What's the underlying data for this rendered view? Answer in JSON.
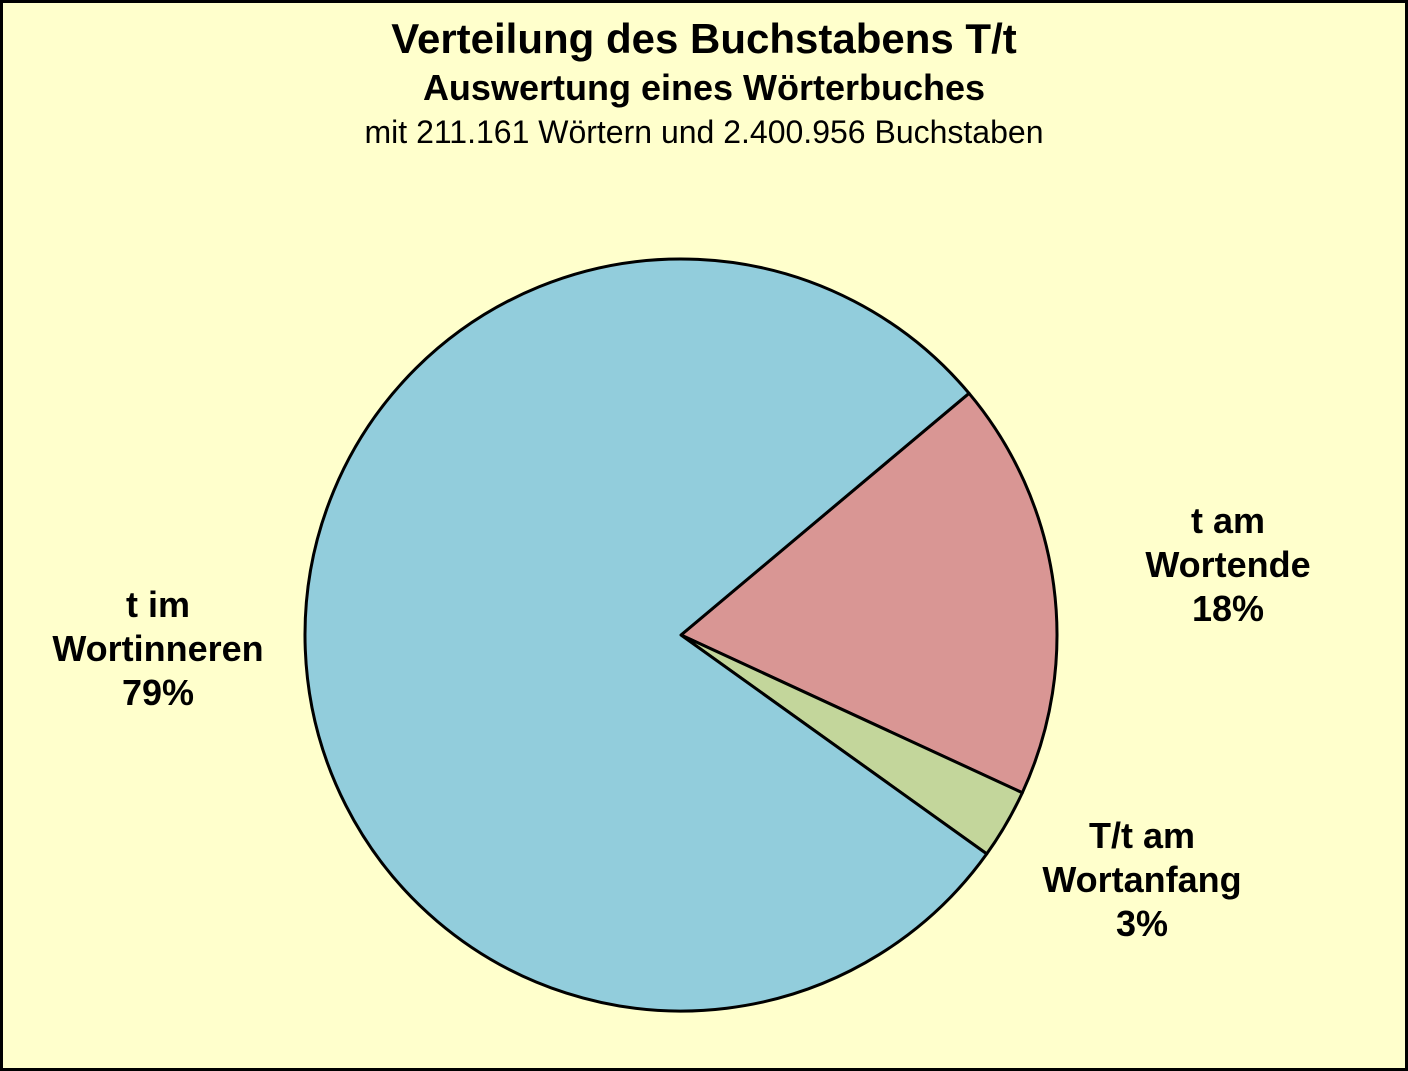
{
  "header": {
    "title": "Verteilung des Buchstabens T/t",
    "subtitle": "Auswertung eines Wörterbuches",
    "stats_line": "mit 211.161 Wörtern und 2.400.956 Buchstaben"
  },
  "colors": {
    "background": "#FFFFCC",
    "outline": "#000000",
    "text": "#000000"
  },
  "chart_data": {
    "type": "pie",
    "title": "Verteilung des Buchstabens T/t",
    "subtitle": "Auswertung eines Wörterbuches",
    "note": "mit 211.161 Wörtern und 2.400.956 Buchstaben",
    "unit": "%",
    "total": 100,
    "start_angle_deg": 40,
    "direction": "clockwise",
    "legend": "none",
    "slices": [
      {
        "name": "t am Wortende",
        "value": 18,
        "color": "#D99694",
        "label_lines": [
          "t am",
          "Wortende"
        ],
        "pct_label": "18%"
      },
      {
        "name": "T/t am Wortanfang",
        "value": 3,
        "color": "#C3D69B",
        "label_lines": [
          "T/t am",
          "Wortanfang"
        ],
        "pct_label": "3%"
      },
      {
        "name": "t im Wortinneren",
        "value": 79,
        "color": "#92CDDC",
        "label_lines": [
          "t im",
          "Wortinneren"
        ],
        "pct_label": "79%"
      }
    ]
  }
}
